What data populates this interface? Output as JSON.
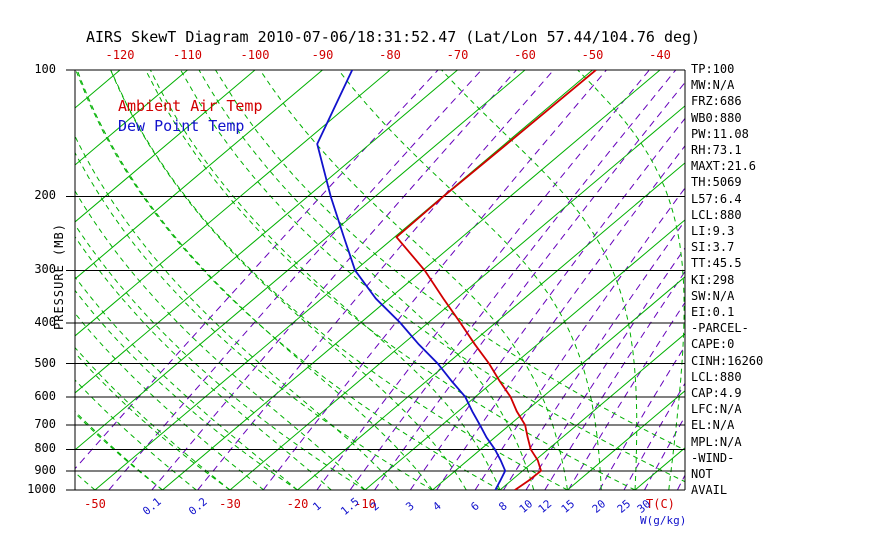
{
  "title": "AIRS SkewT Diagram 2010-07-06/18:31:52.47 (Lat/Lon 57.44/104.76 deg)",
  "legend": {
    "temp": "Ambient Air Temp",
    "dewpoint": "Dew Point Temp"
  },
  "axes": {
    "pressure_label": "PRESSURE (MB)",
    "pressure_ticks": [
      100,
      200,
      300,
      400,
      500,
      600,
      700,
      800,
      900,
      1000
    ],
    "top_temp_ticks": [
      -120,
      -110,
      -100,
      -90,
      -80,
      -70,
      -60,
      -50,
      -40
    ],
    "bottom_temp_ticks": [
      -50,
      -30,
      -20,
      -10
    ],
    "temp_unit_label": "T(C)",
    "mixing_unit_label": "W(g/kg)",
    "mixing_ratio_labels": [
      0.1,
      0.2,
      1,
      1.5,
      2,
      3,
      4,
      6,
      8,
      10,
      12,
      15,
      20,
      25,
      30
    ]
  },
  "stats": [
    "TP:100",
    "MW:N/A",
    "FRZ:686",
    "WB0:880",
    "PW:11.08",
    "RH:73.1",
    "MAXT:21.6",
    "TH:5069",
    "L57:6.4",
    "LCL:880",
    "LI:9.3",
    "SI:3.7",
    "TT:45.5",
    "KI:298",
    "SW:N/A",
    "EI:0.1",
    "-PARCEL-",
    "CAPE:0",
    "CINH:16260",
    "LCL:880",
    "CAP:4.9",
    "LFC:N/A",
    "EL:N/A",
    "MPL:N/A",
    "-WIND-",
    "NOT",
    "AVAIL"
  ],
  "colors": {
    "red": "#d10000",
    "blue": "#1212cc",
    "green": "#00b000",
    "violet": "#6600bb",
    "black": "#000000"
  },
  "chart_data": {
    "type": "line",
    "subtype": "skewt-log-p",
    "title": "AIRS SkewT Diagram 2010-07-06/18:31:52.47 (Lat/Lon 57.44/104.76 deg)",
    "ylabel": "PRESSURE (MB)",
    "xlabel": "T(C)",
    "pressure_range": [
      100,
      1000
    ],
    "pressure_log_scale": true,
    "temp_range_at_1000mb": [
      -53,
      37
    ],
    "series": [
      {
        "name": "Ambient Air Temp",
        "color_key": "red",
        "points_p_t": [
          [
            1000,
            12.2
          ],
          [
            950,
            12.6
          ],
          [
            900,
            12.7
          ],
          [
            850,
            10.4
          ],
          [
            800,
            7.4
          ],
          [
            750,
            4.9
          ],
          [
            700,
            2.3
          ],
          [
            650,
            -1.3
          ],
          [
            600,
            -4.8
          ],
          [
            550,
            -9.2
          ],
          [
            500,
            -13.8
          ],
          [
            450,
            -19.3
          ],
          [
            400,
            -25.2
          ],
          [
            350,
            -32.0
          ],
          [
            300,
            -39.7
          ],
          [
            250,
            -49.7
          ],
          [
            200,
            -49.9
          ],
          [
            150,
            -49.7
          ],
          [
            100,
            -49.5
          ]
        ]
      },
      {
        "name": "Dew Point Temp",
        "color_key": "blue",
        "points_p_t": [
          [
            1000,
            9.3
          ],
          [
            950,
            8.4
          ],
          [
            900,
            7.4
          ],
          [
            850,
            4.9
          ],
          [
            800,
            2.1
          ],
          [
            750,
            -1.2
          ],
          [
            700,
            -4.4
          ],
          [
            650,
            -7.9
          ],
          [
            600,
            -11.5
          ],
          [
            550,
            -16.3
          ],
          [
            500,
            -21.4
          ],
          [
            450,
            -27.6
          ],
          [
            400,
            -34.1
          ],
          [
            350,
            -42.0
          ],
          [
            300,
            -50.0
          ],
          [
            250,
            -57.5
          ],
          [
            200,
            -66.6
          ],
          [
            150,
            -77.8
          ],
          [
            100,
            -85.6
          ]
        ]
      }
    ],
    "grid": {
      "isobars_mb": [
        100,
        200,
        300,
        400,
        500,
        600,
        700,
        800,
        900,
        1000
      ],
      "isotherms_c": {
        "min": -130,
        "max": 40,
        "step": 10
      },
      "dry_adiabats_theta_c": {
        "min": -60,
        "max": 50,
        "step": 10
      },
      "moist_adiabats_start_c": {
        "min": -40,
        "max": 45,
        "step": 5
      },
      "mixing_ratio_g_kg": [
        0.02,
        0.05,
        0.1,
        0.2,
        0.5,
        1,
        1.5,
        2,
        3,
        4,
        6,
        8,
        10,
        12,
        15,
        20,
        25,
        30,
        40
      ]
    },
    "legend_position": "upper-left-inside"
  }
}
